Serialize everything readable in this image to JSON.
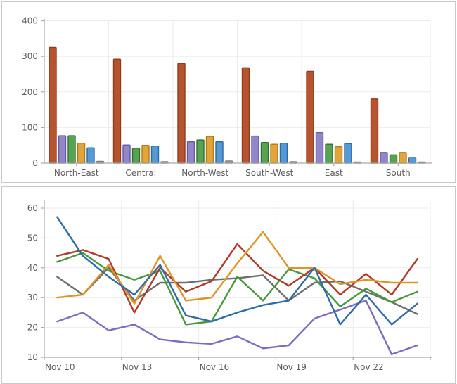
{
  "chart_data": [
    {
      "type": "bar",
      "title": "",
      "categories": [
        "North-East",
        "Central",
        "North-West",
        "South-West",
        "East",
        "South"
      ],
      "series": [
        {
          "name": "red",
          "color": "#b5542f",
          "stroke": "#8e3c1c",
          "values": [
            325,
            292,
            280,
            268,
            258,
            180
          ]
        },
        {
          "name": "purple",
          "color": "#9186c8",
          "stroke": "#685aa6",
          "values": [
            77,
            51,
            60,
            76,
            86,
            30
          ]
        },
        {
          "name": "green",
          "color": "#58a351",
          "stroke": "#30702f",
          "values": [
            77,
            42,
            65,
            58,
            53,
            23
          ]
        },
        {
          "name": "orange",
          "color": "#e2a53c",
          "stroke": "#b07c19",
          "values": [
            56,
            50,
            75,
            53,
            46,
            30
          ]
        },
        {
          "name": "blue",
          "color": "#569ad5",
          "stroke": "#2b6aa2",
          "values": [
            43,
            48,
            60,
            56,
            55,
            16
          ]
        },
        {
          "name": "gray",
          "color": "#a7a7a7",
          "stroke": "#7e7e7e",
          "values": [
            5,
            4,
            6,
            4,
            3,
            3
          ]
        }
      ],
      "ylabel": "",
      "xlabel": "",
      "ylim": [
        0,
        400
      ],
      "yticks": [
        0,
        100,
        200,
        300,
        400
      ],
      "grid": true,
      "legend": "none"
    },
    {
      "type": "line",
      "title": "",
      "n_points": 15,
      "x_start_label": "Nov 10",
      "x_tick_labels": [
        "Nov 10",
        "Nov 13",
        "Nov 16",
        "Nov 19",
        "Nov 22"
      ],
      "x_tick_point_index": [
        0,
        3,
        6,
        9,
        12
      ],
      "series": [
        {
          "name": "gray",
          "color": "#6e6e6e",
          "values": [
            37,
            31,
            40,
            29,
            35,
            35,
            36,
            36.5,
            37.5,
            29,
            35,
            35.5,
            32,
            28.5,
            24.5
          ]
        },
        {
          "name": "green",
          "color": "#46993c",
          "values": [
            42,
            45,
            39,
            36,
            39,
            21,
            22,
            37,
            29,
            39.5,
            36.5,
            27,
            33,
            28.5,
            32
          ]
        },
        {
          "name": "red",
          "color": "#b03a27",
          "values": [
            44,
            46,
            43,
            25,
            40,
            32,
            35.5,
            48,
            39,
            34,
            40,
            31,
            38,
            31,
            43
          ]
        },
        {
          "name": "orange",
          "color": "#e09325",
          "values": [
            30,
            31,
            41,
            28,
            44,
            29,
            30,
            41.5,
            52,
            40,
            40,
            34.5,
            36,
            35,
            35
          ]
        },
        {
          "name": "purple",
          "color": "#7e6cc0",
          "values": [
            22,
            25,
            19,
            21,
            16,
            15,
            14.5,
            17,
            13,
            14,
            23,
            26,
            29,
            11,
            14
          ]
        },
        {
          "name": "blue",
          "color": "#2e6ca8",
          "values": [
            57,
            44,
            37,
            31,
            41,
            24,
            22,
            25,
            27.5,
            29,
            40,
            21,
            31,
            21,
            28
          ]
        }
      ],
      "ylabel": "",
      "xlabel": "",
      "ylim": [
        10,
        60
      ],
      "yticks": [
        10,
        20,
        30,
        40,
        50,
        60
      ],
      "grid": true,
      "legend": "none"
    }
  ],
  "style": {
    "axis_color": "#a9a9a9",
    "grid_color": "#ebebeb",
    "label_color": "#5c5c5c",
    "panel_border": "#c9c9c9",
    "background": "#ffffff"
  }
}
